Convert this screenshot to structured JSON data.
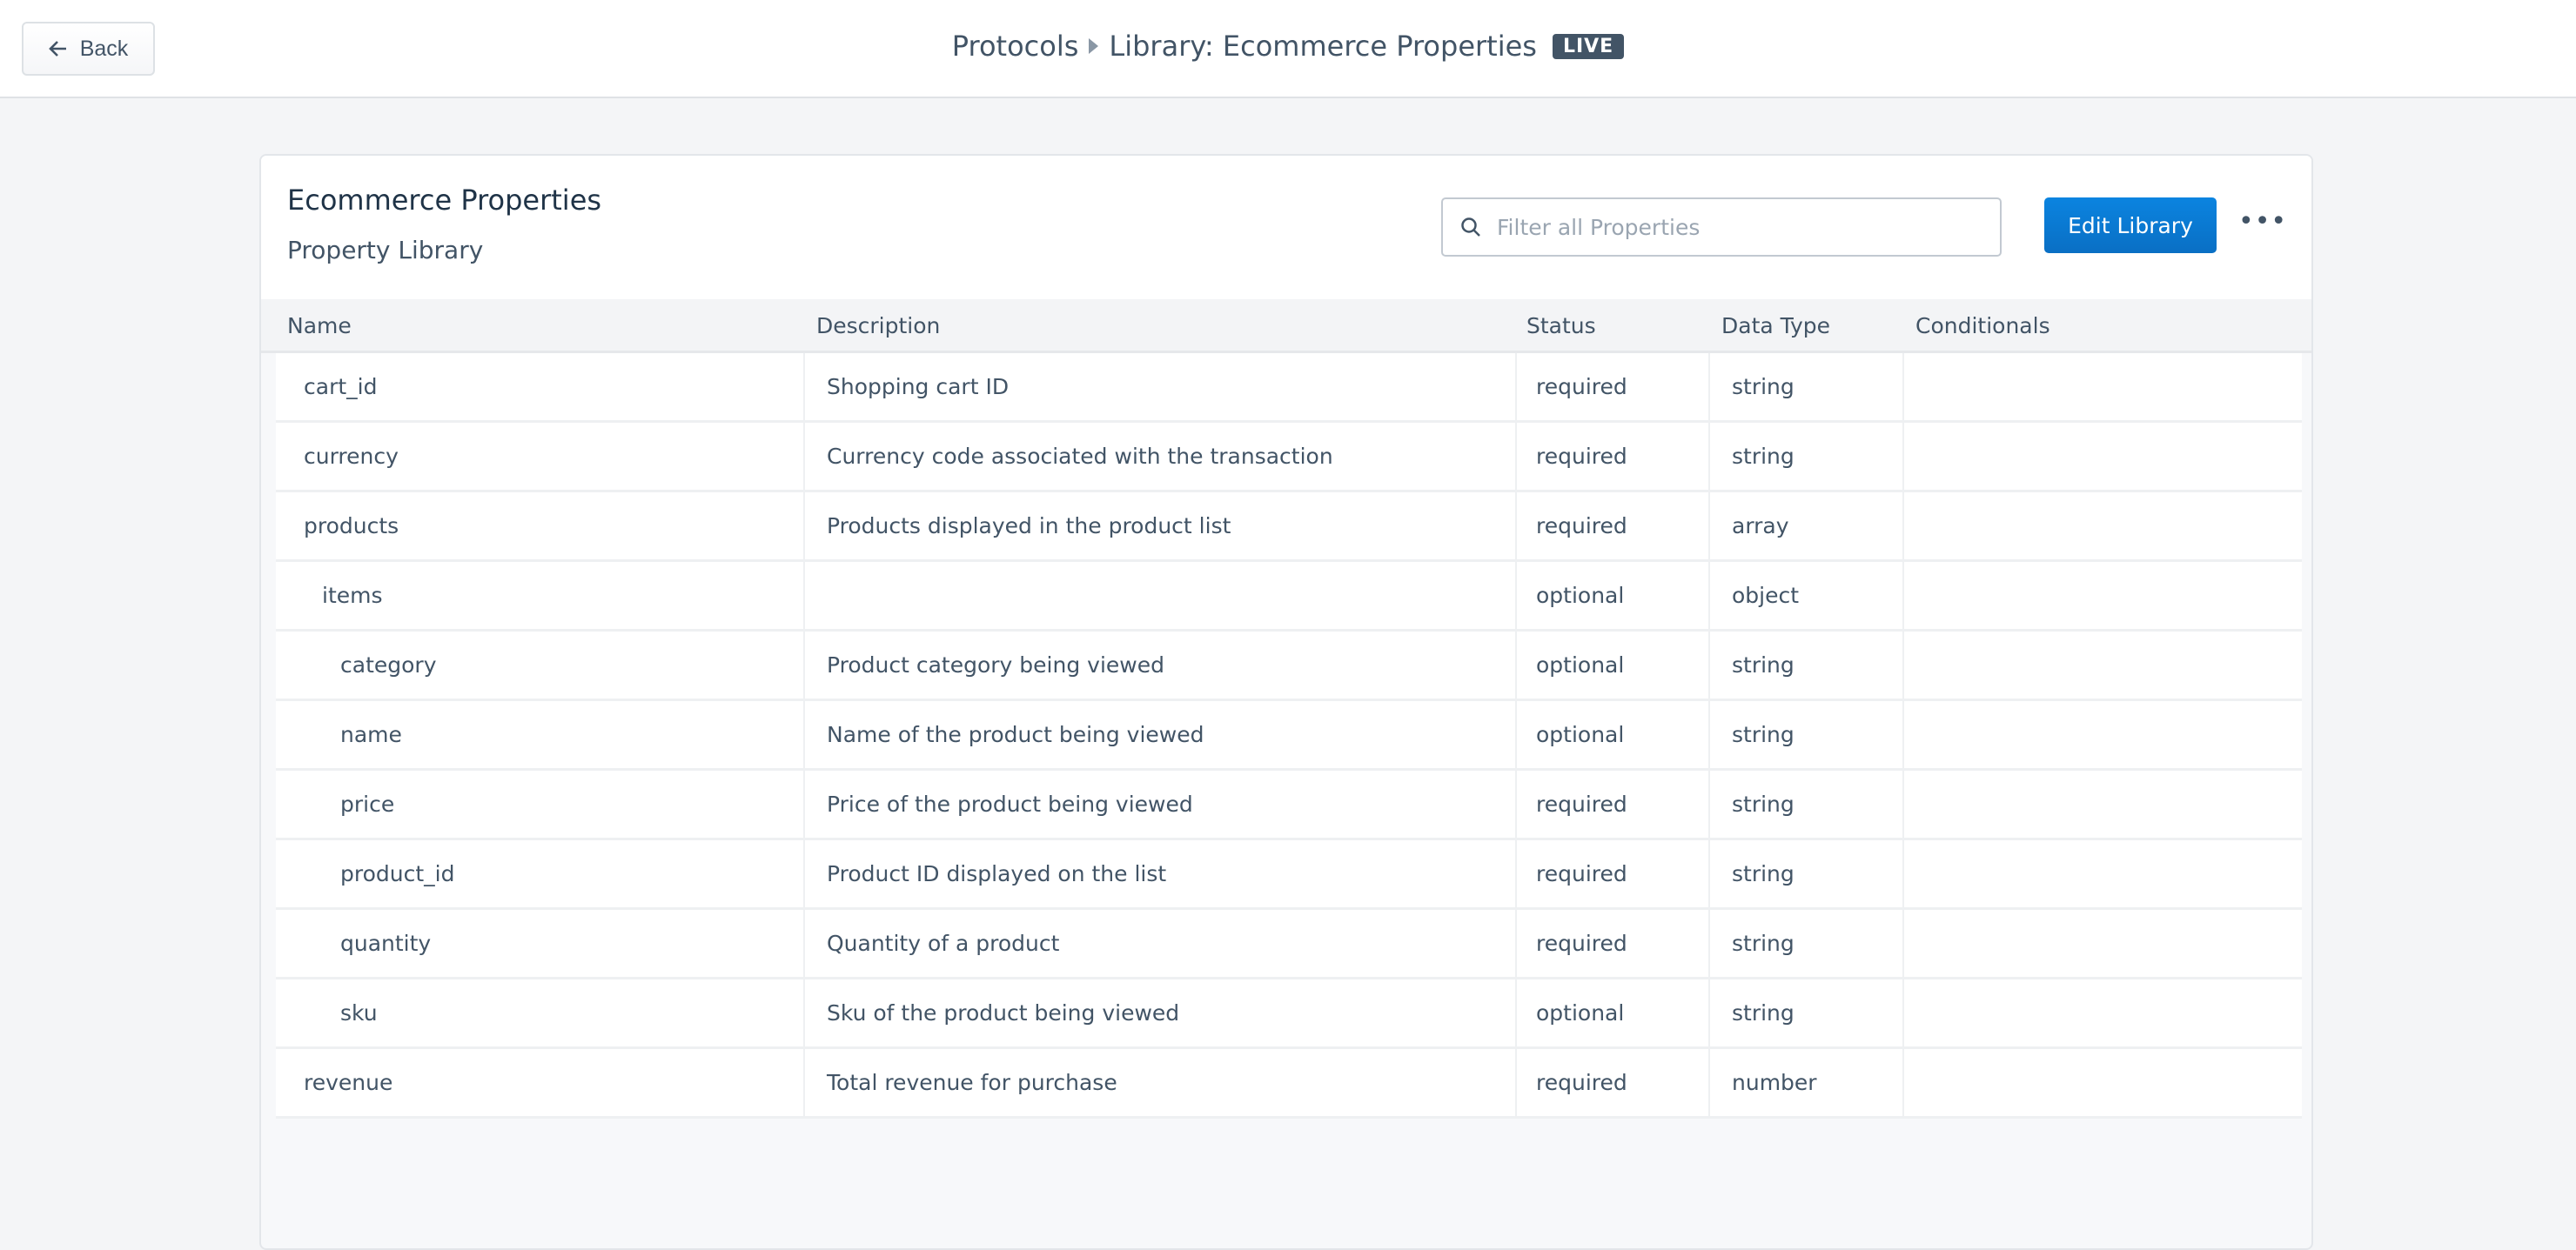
{
  "topbar": {
    "back_label": "Back",
    "crumb_root": "Protocols",
    "crumb_current": "Library: Ecommerce Properties",
    "badge": "LIVE"
  },
  "card": {
    "title": "Ecommerce Properties",
    "subtitle": "Property Library",
    "search_placeholder": "Filter all Properties",
    "search_value": "",
    "edit_label": "Edit Library",
    "more_label": "•••"
  },
  "table": {
    "headers": [
      "Name",
      "Description",
      "Status",
      "Data Type",
      "Conditionals"
    ],
    "rows": [
      {
        "name": "cart_id",
        "level": 0,
        "description": "Shopping cart ID",
        "status": "required",
        "type": "string",
        "conditionals": ""
      },
      {
        "name": "currency",
        "level": 0,
        "description": "Currency code associated with the transaction",
        "status": "required",
        "type": "string",
        "conditionals": ""
      },
      {
        "name": "products",
        "level": 0,
        "description": "Products displayed in the product list",
        "status": "required",
        "type": "array",
        "conditionals": ""
      },
      {
        "name": "items",
        "level": 1,
        "description": "",
        "status": "optional",
        "type": "object",
        "conditionals": ""
      },
      {
        "name": "category",
        "level": 2,
        "description": "Product category being viewed",
        "status": "optional",
        "type": "string",
        "conditionals": ""
      },
      {
        "name": "name",
        "level": 2,
        "description": "Name of the product being viewed",
        "status": "optional",
        "type": "string",
        "conditionals": ""
      },
      {
        "name": "price",
        "level": 2,
        "description": "Price of the product being viewed",
        "status": "required",
        "type": "string",
        "conditionals": ""
      },
      {
        "name": "product_id",
        "level": 2,
        "description": "Product ID displayed on the list",
        "status": "required",
        "type": "string",
        "conditionals": ""
      },
      {
        "name": "quantity",
        "level": 2,
        "description": "Quantity of a product",
        "status": "required",
        "type": "string",
        "conditionals": ""
      },
      {
        "name": "sku",
        "level": 2,
        "description": "Sku of the product being viewed",
        "status": "optional",
        "type": "string",
        "conditionals": ""
      },
      {
        "name": "revenue",
        "level": 0,
        "description": "Total revenue for purchase",
        "status": "required",
        "type": "number",
        "conditionals": ""
      }
    ]
  },
  "colors": {
    "accent": "#0a7ad6",
    "badge": "#425466",
    "text": "#425466"
  },
  "icons": {
    "back": "arrow-left-icon",
    "search": "search-icon",
    "more": "more-horizontal-icon"
  }
}
